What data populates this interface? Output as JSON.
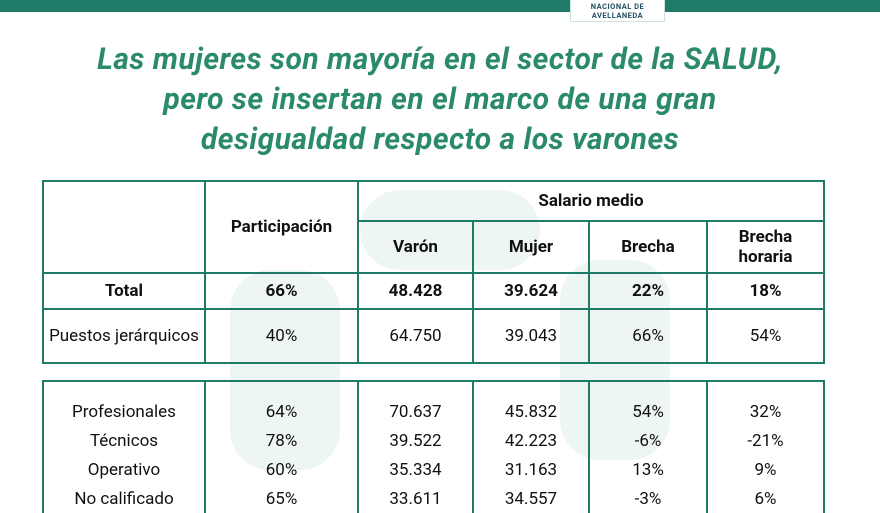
{
  "header": {
    "logo": [
      "NACIONAL DE",
      "AVELLANEDA"
    ]
  },
  "title": [
    "Las mujeres son mayoría en el sector de la SALUD,",
    "pero se insertan en el marco de una gran",
    "desigualdad respecto a los varones"
  ],
  "table": {
    "headers": {
      "participation": "Participación",
      "salary_group": "Salario medio",
      "columns": [
        "Varón",
        "Mujer",
        "Brecha",
        "Brecha horaria"
      ]
    },
    "rows": [
      [
        "Total",
        "66%",
        "48.428",
        "39.624",
        "22%",
        "18%"
      ],
      [
        "Puestos jerárquicos",
        "40%",
        "64.750",
        "39.043",
        "66%",
        "54%"
      ]
    ],
    "rows_by_qualification": [
      [
        "Profesionales",
        "64%",
        "70.637",
        "45.832",
        "54%",
        "32%"
      ],
      [
        "Técnicos",
        "78%",
        "39.522",
        "42.223",
        "-6%",
        "-21%"
      ],
      [
        "Operativo",
        "60%",
        "35.334",
        "31.163",
        "13%",
        "9%"
      ],
      [
        "No calificado",
        "65%",
        "33.611",
        "34.557",
        "-3%",
        "6%"
      ]
    ]
  }
}
